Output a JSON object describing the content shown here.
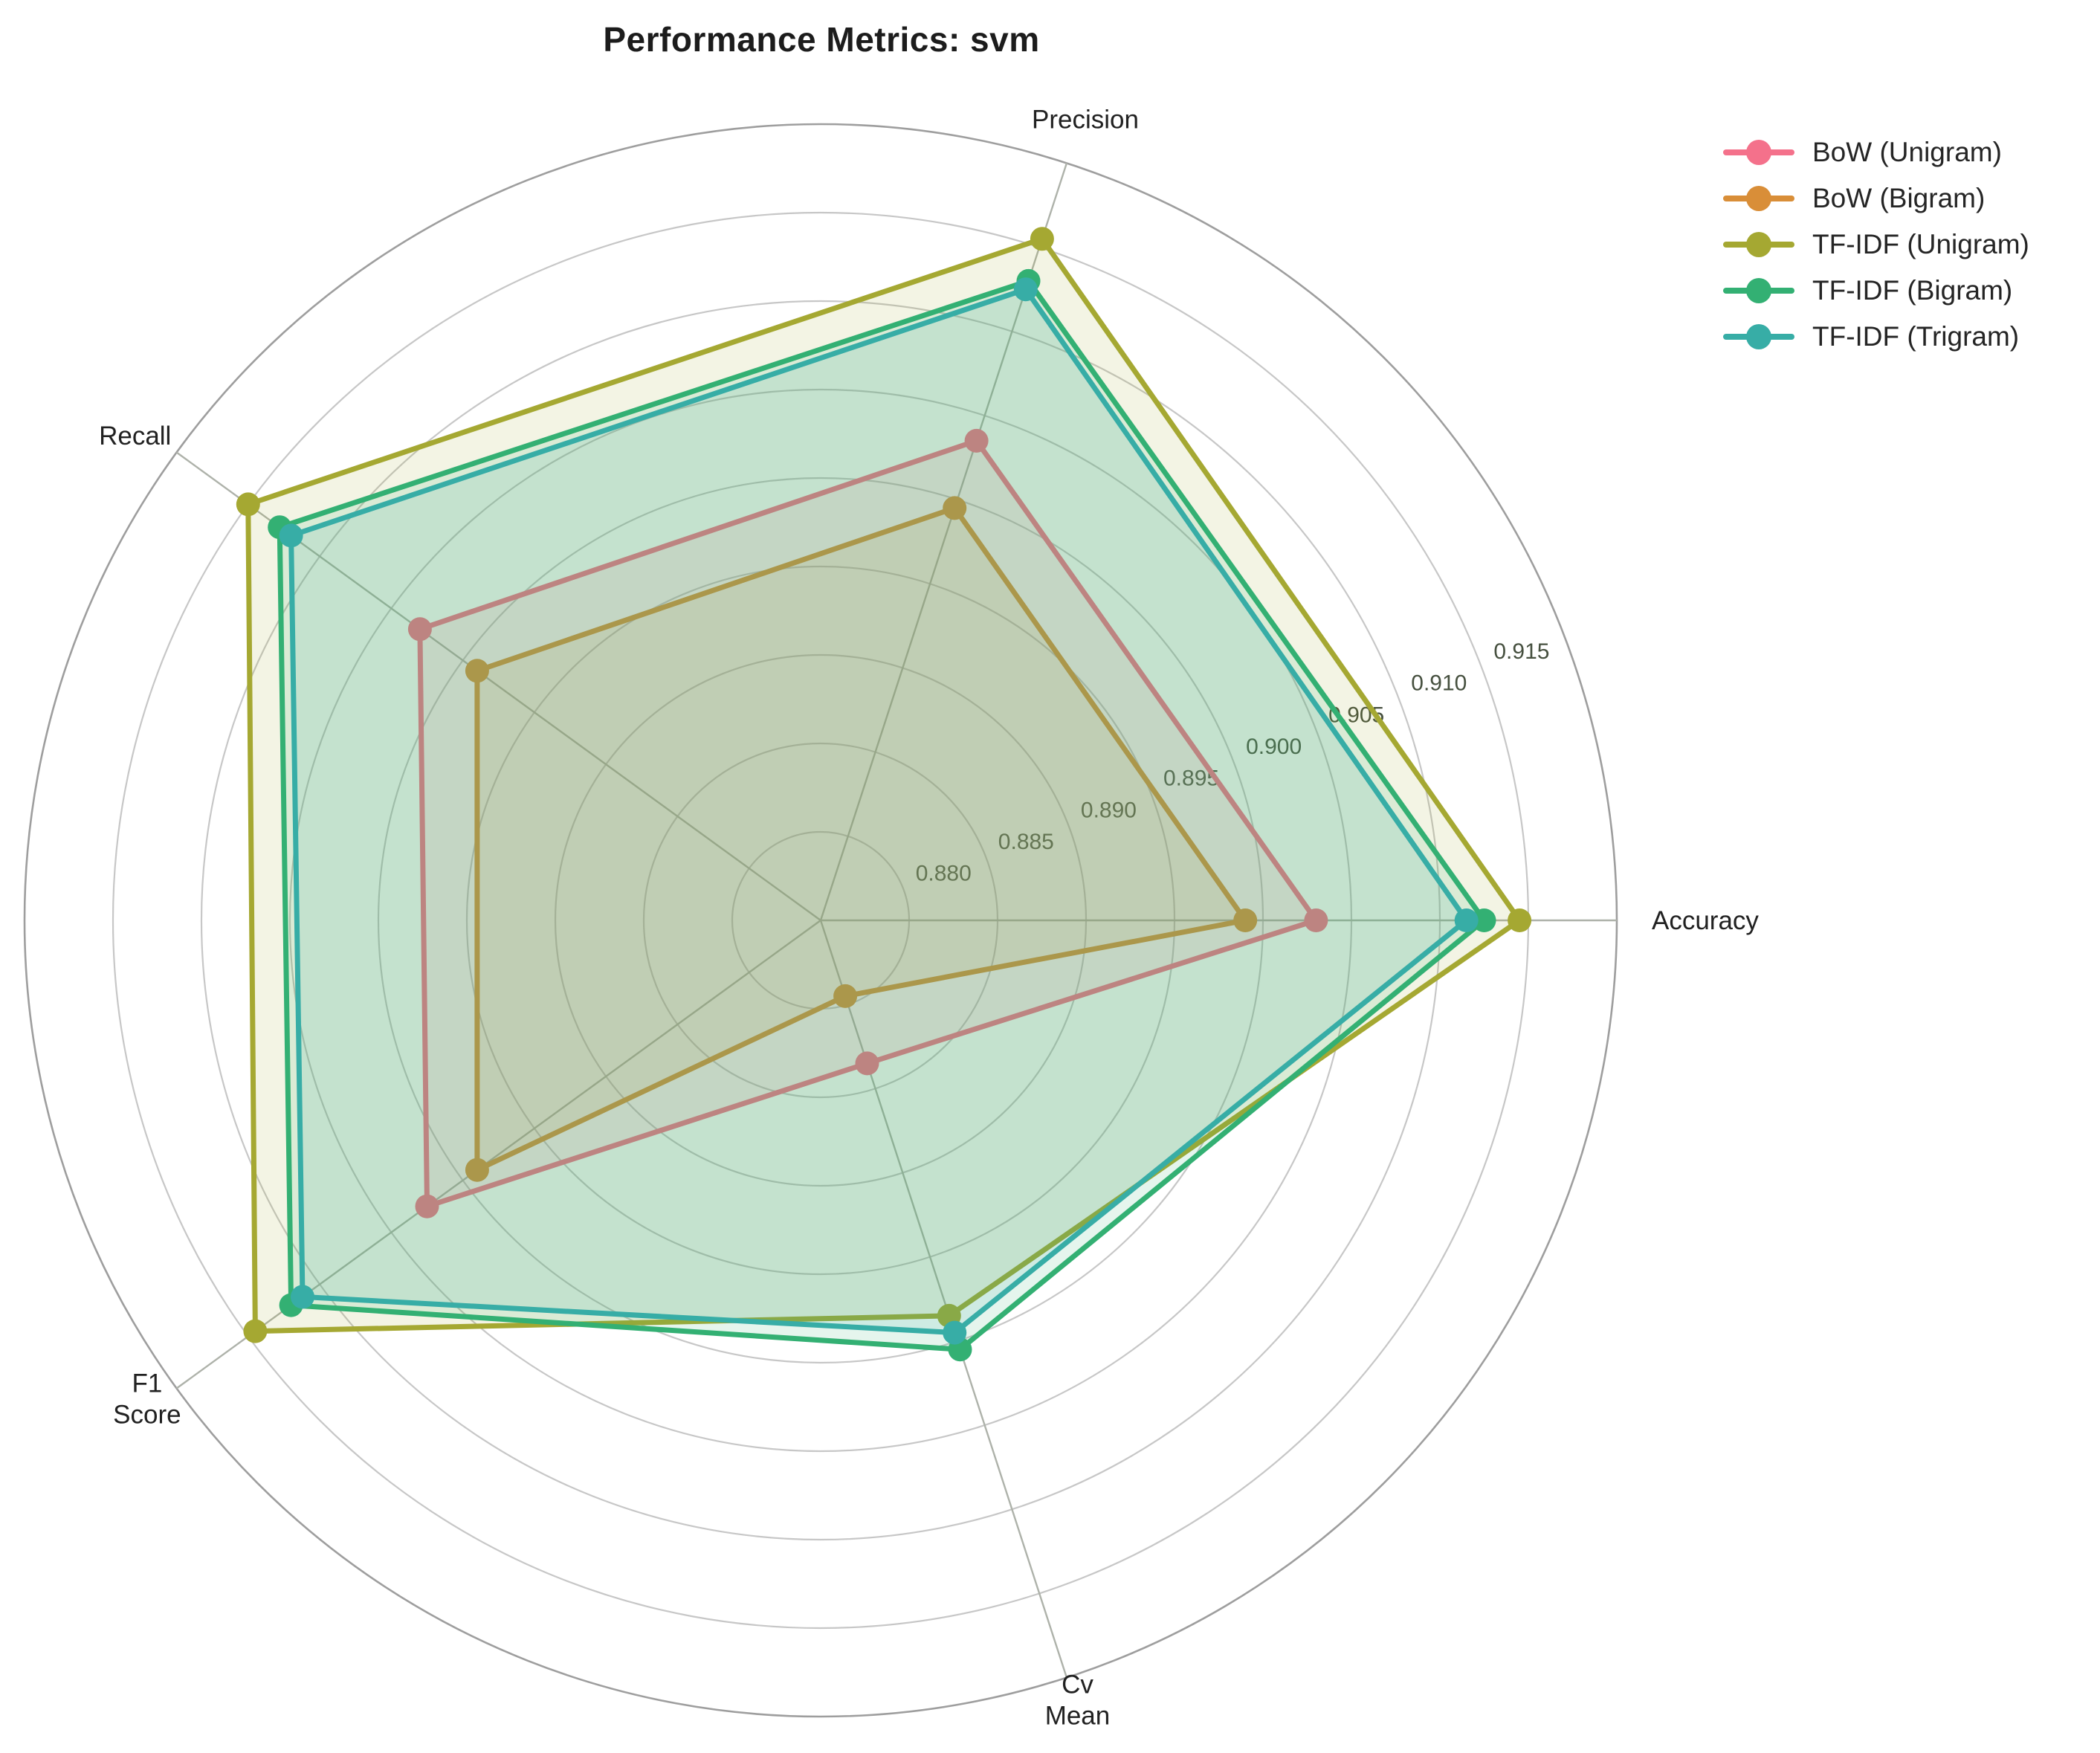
{
  "chart_data": {
    "type": "radar",
    "title": "Performance Metrics: svm",
    "axes": [
      {
        "label": "Accuracy",
        "lines": [
          "Accuracy"
        ],
        "angle_deg": 0
      },
      {
        "label": "Precision",
        "lines": [
          "Precision"
        ],
        "angle_deg": 72
      },
      {
        "label": "Recall",
        "lines": [
          "Recall"
        ],
        "angle_deg": 144
      },
      {
        "label": "F1 Score",
        "lines": [
          "F1",
          "Score"
        ],
        "angle_deg": 216
      },
      {
        "label": "Cv Mean",
        "lines": [
          "Cv",
          "Mean"
        ],
        "angle_deg": 288
      }
    ],
    "axis_range": [
      0.875,
      0.92
    ],
    "grid_step": 0.005,
    "grid": true,
    "tick_values": [
      0.88,
      0.885,
      0.89,
      0.895,
      0.9,
      0.905,
      0.91,
      0.915
    ],
    "tick_labels": [
      "0.880",
      "0.885",
      "0.890",
      "0.895",
      "0.900",
      "0.905",
      "0.910",
      "0.915"
    ],
    "legend_position": "top-right",
    "series": [
      {
        "name": "BoW (Unigram)",
        "color": "#f4718b",
        "values": [
          0.903,
          0.9035,
          0.903,
          0.9025,
          0.8835
        ]
      },
      {
        "name": "BoW (Bigram)",
        "color": "#d98e38",
        "values": [
          0.899,
          0.8995,
          0.899,
          0.899,
          0.8795
        ]
      },
      {
        "name": "TF-IDF (Unigram)",
        "color": "#a5a832",
        "values": [
          0.9145,
          0.9155,
          0.915,
          0.9145,
          0.8985
        ]
      },
      {
        "name": "TF-IDF (Bigram)",
        "color": "#33b073",
        "values": [
          0.9125,
          0.913,
          0.9128,
          0.912,
          0.9005
        ]
      },
      {
        "name": "TF-IDF (Trigram)",
        "color": "#37ada6",
        "values": [
          0.9115,
          0.9125,
          0.912,
          0.9112,
          0.8995
        ]
      }
    ]
  }
}
